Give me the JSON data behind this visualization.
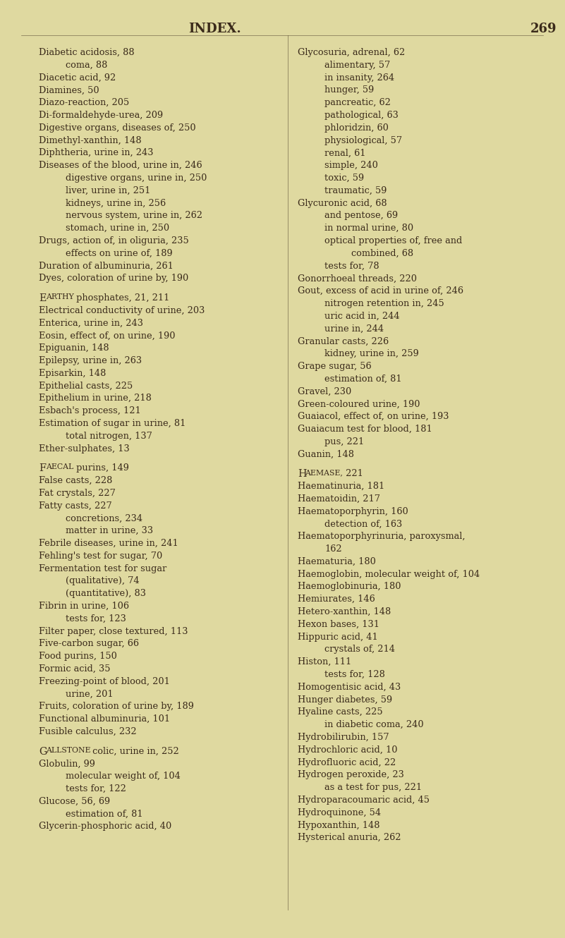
{
  "bg_color": "#dfd9a0",
  "text_color": "#3a2a1a",
  "title": "INDEX.",
  "page_num": "269",
  "left_col": [
    [
      "Diabetic acidosis, 88",
      false
    ],
    [
      "        coma, 88",
      false
    ],
    [
      "Diacetic acid, 92",
      false
    ],
    [
      "Diamines, 50",
      false
    ],
    [
      "Diazo-reaction, 205",
      false
    ],
    [
      "Di-formaldehyde-urea, 209",
      false
    ],
    [
      "Digestive organs, diseases of, 250",
      false
    ],
    [
      "Dimethyl-xanthin, 148",
      false
    ],
    [
      "Diphtheria, urine in, 243",
      false
    ],
    [
      "Diseases of the blood, urine in, 246",
      false
    ],
    [
      "        digestive organs, urine in, 250",
      false
    ],
    [
      "        liver, urine in, 251",
      false
    ],
    [
      "        kidneys, urine in, 256",
      false
    ],
    [
      "        nervous system, urine in, 262",
      false
    ],
    [
      "        stomach, urine in, 250",
      false
    ],
    [
      "Drugs, action of, in oliguria, 235",
      false
    ],
    [
      "        effects on urine of, 189",
      false
    ],
    [
      "Duration of albuminuria, 261",
      false
    ],
    [
      "Dyes, coloration of urine by, 190",
      false
    ],
    [
      "",
      false
    ],
    [
      "EARTHY phosphates, 21, 211",
      true
    ],
    [
      "Electrical conductivity of urine, 203",
      false
    ],
    [
      "Enterica, urine in, 243",
      false
    ],
    [
      "Eosin, effect of, on urine, 190",
      false
    ],
    [
      "Epiguanin, 148",
      false
    ],
    [
      "Epilepsy, urine in, 263",
      false
    ],
    [
      "Episarkin, 148",
      false
    ],
    [
      "Epithelial casts, 225",
      false
    ],
    [
      "Epithelium in urine, 218",
      false
    ],
    [
      "Esbach's process, 121",
      false
    ],
    [
      "Estimation of sugar in urine, 81",
      false
    ],
    [
      "        total nitrogen, 137",
      false
    ],
    [
      "Ether-sulphates, 13",
      false
    ],
    [
      "",
      false
    ],
    [
      "FAECAL purins, 149",
      true
    ],
    [
      "False casts, 228",
      false
    ],
    [
      "Fat crystals, 227",
      false
    ],
    [
      "Fatty casts, 227",
      false
    ],
    [
      "        concretions, 234",
      false
    ],
    [
      "        matter in urine, 33",
      false
    ],
    [
      "Febrile diseases, urine in, 241",
      false
    ],
    [
      "Fehling's test for sugar, 70",
      false
    ],
    [
      "Fermentation test for sugar",
      false
    ],
    [
      "        (qualitative), 74",
      false
    ],
    [
      "        (quantitative), 83",
      false
    ],
    [
      "Fibrin in urine, 106",
      false
    ],
    [
      "        tests for, 123",
      false
    ],
    [
      "Filter paper, close textured, 113",
      false
    ],
    [
      "Five-carbon sugar, 66",
      false
    ],
    [
      "Food purins, 150",
      false
    ],
    [
      "Formic acid, 35",
      false
    ],
    [
      "Freezing-point of blood, 201",
      false
    ],
    [
      "        urine, 201",
      false
    ],
    [
      "Fruits, coloration of urine by, 189",
      false
    ],
    [
      "Functional albuminuria, 101",
      false
    ],
    [
      "Fusible calculus, 232",
      false
    ],
    [
      "",
      false
    ],
    [
      "GALLSTONE colic, urine in, 252",
      true
    ],
    [
      "Globulin, 99",
      false
    ],
    [
      "        molecular weight of, 104",
      false
    ],
    [
      "        tests for, 122",
      false
    ],
    [
      "Glucose, 56, 69",
      false
    ],
    [
      "        estimation of, 81",
      false
    ],
    [
      "Glycerin-phosphoric acid, 40",
      false
    ]
  ],
  "right_col": [
    [
      "Glycosuria, adrenal, 62",
      false
    ],
    [
      "        alimentary, 57",
      false
    ],
    [
      "        in insanity, 264",
      false
    ],
    [
      "        hunger, 59",
      false
    ],
    [
      "        pancreatic, 62",
      false
    ],
    [
      "        pathological, 63",
      false
    ],
    [
      "        phloridzin, 60",
      false
    ],
    [
      "        physiological, 57",
      false
    ],
    [
      "        renal, 61",
      false
    ],
    [
      "        simple, 240",
      false
    ],
    [
      "        toxic, 59",
      false
    ],
    [
      "        traumatic, 59",
      false
    ],
    [
      "Glycuronic acid, 68",
      false
    ],
    [
      "        and pentose, 69",
      false
    ],
    [
      "        in normal urine, 80",
      false
    ],
    [
      "        optical properties of, free and",
      false
    ],
    [
      "                combined, 68",
      false
    ],
    [
      "        tests for, 78",
      false
    ],
    [
      "Gonorrhoeal threads, 220",
      false
    ],
    [
      "Gout, excess of acid in urine of, 246",
      false
    ],
    [
      "        nitrogen retention in, 245",
      false
    ],
    [
      "        uric acid in, 244",
      false
    ],
    [
      "        urine in, 244",
      false
    ],
    [
      "Granular casts, 226",
      false
    ],
    [
      "        kidney, urine in, 259",
      false
    ],
    [
      "Grape sugar, 56",
      false
    ],
    [
      "        estimation of, 81",
      false
    ],
    [
      "Gravel, 230",
      false
    ],
    [
      "Green-coloured urine, 190",
      false
    ],
    [
      "Guaiacol, effect of, on urine, 193",
      false
    ],
    [
      "Guaiacum test for blood, 181",
      false
    ],
    [
      "        pus, 221",
      false
    ],
    [
      "Guanin, 148",
      false
    ],
    [
      "",
      false
    ],
    [
      "HAEMASE, 221",
      true
    ],
    [
      "Haematinuria, 181",
      false
    ],
    [
      "Haematoidin, 217",
      false
    ],
    [
      "Haematoporphyrin, 160",
      false
    ],
    [
      "        detection of, 163",
      false
    ],
    [
      "Haematoporphyrinuria, paroxysmal,",
      false
    ],
    [
      "        162",
      false
    ],
    [
      "Haematuria, 180",
      false
    ],
    [
      "Haemoglobin, molecular weight of, 104",
      false
    ],
    [
      "Haemoglobinuria, 180",
      false
    ],
    [
      "Hemiurates, 146",
      false
    ],
    [
      "Hetero-xanthin, 148",
      false
    ],
    [
      "Hexon bases, 131",
      false
    ],
    [
      "Hippuric acid, 41",
      false
    ],
    [
      "        crystals of, 214",
      false
    ],
    [
      "Histon, 111",
      false
    ],
    [
      "        tests for, 128",
      false
    ],
    [
      "Homogentisic acid, 43",
      false
    ],
    [
      "Hunger diabetes, 59",
      false
    ],
    [
      "Hyaline casts, 225",
      false
    ],
    [
      "        in diabetic coma, 240",
      false
    ],
    [
      "Hydrobilirubin, 157",
      false
    ],
    [
      "Hydrochloric acid, 10",
      false
    ],
    [
      "Hydrofluoric acid, 22",
      false
    ],
    [
      "Hydrogen peroxide, 23",
      false
    ],
    [
      "        as a test for pus, 221",
      false
    ],
    [
      "Hydroparacoumaric acid, 45",
      false
    ],
    [
      "Hydroquinone, 54",
      false
    ],
    [
      "Hypoxanthin, 148",
      false
    ],
    [
      "Hysterical anuria, 262",
      false
    ]
  ]
}
